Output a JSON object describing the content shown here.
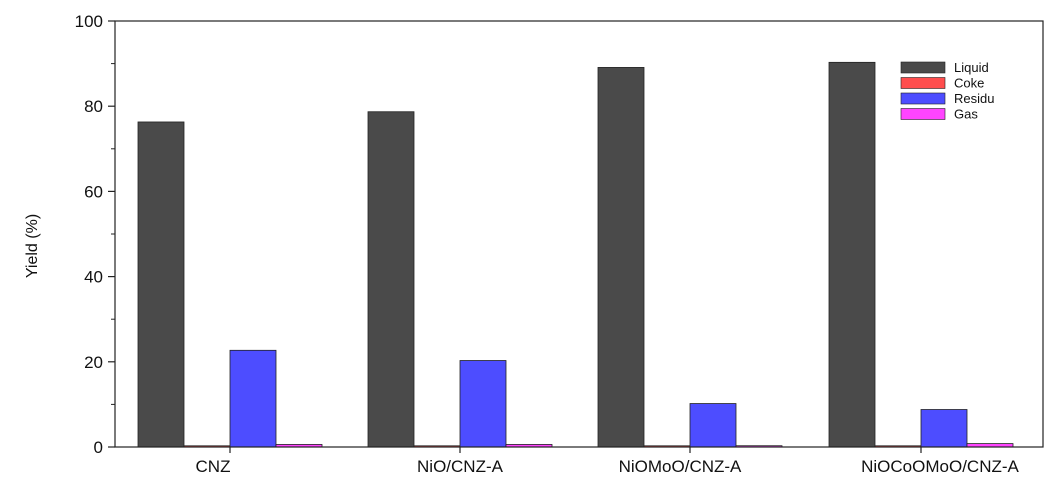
{
  "chart_data": {
    "type": "bar",
    "title": "",
    "xlabel": "",
    "ylabel": "Yield (%)",
    "ylim": [
      0,
      100
    ],
    "yticks": [
      0,
      20,
      40,
      60,
      80,
      100
    ],
    "grid": false,
    "legend_position": "top-right",
    "categories": [
      "CNZ",
      "NiO/CNZ-A",
      "NiOMoO/CNZ-A",
      "NiOCoOMoO/CNZ-A"
    ],
    "series": [
      {
        "name": "Liquid",
        "color": "#4a4a4a",
        "values": [
          76.3,
          78.7,
          89.1,
          90.3
        ]
      },
      {
        "name": "Coke",
        "color": "#ff4d4d",
        "values": [
          0.2,
          0.2,
          0.2,
          0.2
        ]
      },
      {
        "name": "Residu",
        "color": "#4d4dff",
        "values": [
          22.7,
          20.3,
          10.2,
          8.8
        ]
      },
      {
        "name": "Gas",
        "color": "#ff44ff",
        "values": [
          0.6,
          0.6,
          0.3,
          0.8
        ]
      }
    ]
  }
}
